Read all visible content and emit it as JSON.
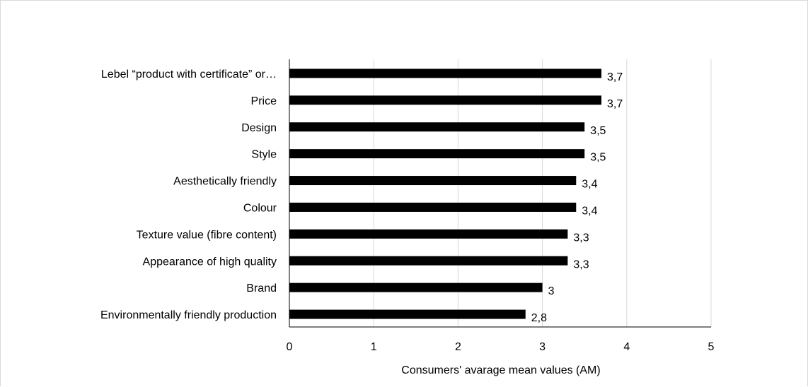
{
  "chart_data": {
    "type": "bar",
    "orientation": "horizontal",
    "title": "",
    "xlabel": "Consumers' avarage mean values (AM)",
    "ylabel": "",
    "xlim": [
      0,
      5
    ],
    "x_ticks": [
      "0",
      "1",
      "2",
      "3",
      "4",
      "5"
    ],
    "grid": true,
    "legend": "none",
    "categories": [
      "Lebel “product with certificate” or…",
      "Price",
      "Design",
      "Style",
      "Aesthetically friendly",
      "Colour",
      "Texture value (fibre content)",
      "Appearance of high quality ",
      "Brand",
      "Environmentally friendly production"
    ],
    "values": [
      3.7,
      3.7,
      3.5,
      3.5,
      3.4,
      3.4,
      3.3,
      3.3,
      3.0,
      2.8
    ],
    "data_labels": [
      "3,7",
      "3,7",
      "3,5",
      "3,5",
      "3,4",
      "3,4",
      "3,3",
      "3,3",
      "3",
      "2,8"
    ],
    "colors": {
      "bar": "#000000",
      "gridline": "#d9d9d9",
      "axis": "#000000",
      "frame": "#d9d9d9"
    }
  }
}
